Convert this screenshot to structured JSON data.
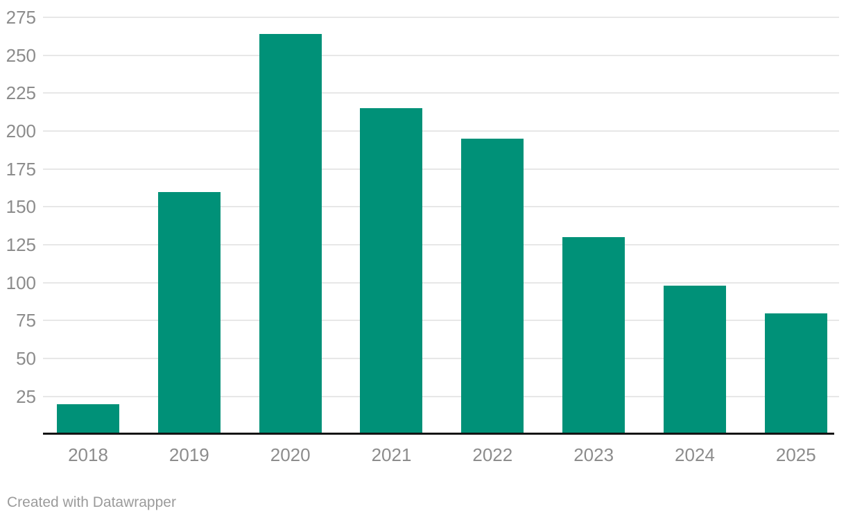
{
  "footer": {
    "credit": "Created with Datawrapper"
  },
  "chart_data": {
    "type": "bar",
    "title": "",
    "xlabel": "",
    "ylabel": "",
    "categories": [
      "2018",
      "2019",
      "2020",
      "2021",
      "2022",
      "2023",
      "2024",
      "2025"
    ],
    "values": [
      20,
      160,
      264,
      215,
      195,
      130,
      98,
      80
    ],
    "ylim": [
      0,
      275
    ],
    "ytick_step": 25,
    "ytick_labels": [
      "25",
      "50",
      "75",
      "100",
      "125",
      "150",
      "175",
      "200",
      "225",
      "250",
      "275"
    ],
    "grid": "horizontal-only",
    "legend": "none",
    "bar_color": "#009178",
    "grid_color": "#e7e7e7",
    "axis_color": "#141414",
    "tick_label_color": "#8c8c8c",
    "credit_color": "#9b9b9b"
  }
}
